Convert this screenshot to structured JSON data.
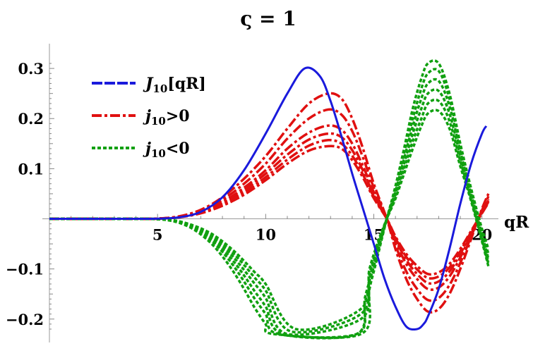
{
  "chart_data": {
    "type": "line",
    "title": "ς = 1",
    "xlabel": "qR",
    "ylabel": "",
    "xlim": [
      0,
      20.5
    ],
    "ylim": [
      -0.22,
      0.31
    ],
    "x_ticks": [
      5,
      10,
      15,
      20
    ],
    "x_tick_labels": [
      "5",
      "10",
      "15",
      "20"
    ],
    "y_ticks": [
      0.3,
      0.2,
      0.1,
      -0.1,
      -0.2
    ],
    "y_tick_labels": [
      "0.3",
      "0.2",
      "0.1",
      "−0.1",
      "−0.2"
    ],
    "legend_position": "top-left",
    "legend": [
      {
        "label_main": "J",
        "label_sub": "10",
        "label_rest": "[qR]",
        "color": "#1a1adc",
        "style": "solid"
      },
      {
        "label_main": "j",
        "label_sub": "10",
        "label_rest": ">0",
        "color": "#e01010",
        "style": "dashdot"
      },
      {
        "label_main": "j",
        "label_sub": "10",
        "label_rest": "<0",
        "color": "#10a010",
        "style": "dotted"
      }
    ],
    "series": [
      {
        "group": "J10",
        "color": "#1a1adc",
        "style": "solid",
        "x": [
          0,
          2,
          4,
          5,
          6,
          7,
          8,
          9,
          10,
          11,
          11.8,
          12.5,
          13,
          13.5,
          14,
          14.5,
          15,
          15.5,
          16,
          16.5,
          17,
          17.3,
          17.5,
          18,
          18.5,
          19,
          19.5,
          20,
          20.2
        ],
        "y": [
          0,
          0,
          0,
          0.0003,
          0.003,
          0.014,
          0.043,
          0.097,
          0.17,
          0.25,
          0.3,
          0.285,
          0.235,
          0.165,
          0.09,
          0.02,
          -0.05,
          -0.12,
          -0.175,
          -0.215,
          -0.22,
          -0.21,
          -0.195,
          -0.14,
          -0.06,
          0.03,
          0.11,
          0.17,
          0.185
        ]
      },
      {
        "group": "j_pos",
        "color": "#e01010",
        "style": "dashdot",
        "x": [
          0,
          4,
          5,
          6,
          7,
          8,
          9,
          10,
          11,
          12,
          12.9,
          13.5,
          14,
          14.5,
          15,
          15.6,
          16,
          16.5,
          17,
          17.5,
          18,
          18.5,
          19,
          19.5,
          20,
          20.3
        ],
        "y": [
          0,
          0,
          0.0006,
          0.005,
          0.018,
          0.043,
          0.08,
          0.125,
          0.18,
          0.23,
          0.25,
          0.24,
          0.2,
          0.14,
          0.07,
          0.0,
          -0.06,
          -0.12,
          -0.16,
          -0.185,
          -0.18,
          -0.15,
          -0.1,
          -0.04,
          0.02,
          0.05
        ]
      },
      {
        "group": "j_pos",
        "color": "#e01010",
        "style": "dashdot",
        "x": [
          0,
          4,
          5,
          6,
          7,
          8,
          9,
          10,
          11,
          12,
          12.9,
          13.5,
          14,
          14.5,
          15,
          15.6,
          16,
          16.5,
          17,
          17.5,
          18,
          18.5,
          19,
          19.5,
          20,
          20.3
        ],
        "y": [
          0,
          0,
          0.0005,
          0.0045,
          0.016,
          0.038,
          0.07,
          0.11,
          0.16,
          0.2,
          0.218,
          0.208,
          0.175,
          0.122,
          0.062,
          0.0,
          -0.052,
          -0.105,
          -0.14,
          -0.162,
          -0.158,
          -0.132,
          -0.088,
          -0.035,
          0.017,
          0.045
        ]
      },
      {
        "group": "j_pos",
        "color": "#e01010",
        "style": "dashdot",
        "x": [
          0,
          4,
          5,
          6,
          7,
          8,
          9,
          10,
          11,
          12,
          12.9,
          13.5,
          14,
          14.5,
          15,
          15.6,
          16,
          16.5,
          17,
          17.5,
          18,
          18.5,
          19,
          19.5,
          20,
          20.3
        ],
        "y": [
          0,
          0,
          0.0005,
          0.004,
          0.014,
          0.033,
          0.062,
          0.097,
          0.14,
          0.172,
          0.186,
          0.178,
          0.15,
          0.105,
          0.053,
          0.0,
          -0.045,
          -0.09,
          -0.12,
          -0.14,
          -0.137,
          -0.115,
          -0.077,
          -0.03,
          0.015,
          0.04
        ]
      },
      {
        "group": "j_pos",
        "color": "#e01010",
        "style": "dashdot",
        "x": [
          0,
          4,
          5,
          6,
          7,
          8,
          9,
          10,
          11,
          12,
          12.9,
          13.5,
          14,
          14.5,
          15,
          15.6,
          16,
          16.5,
          17,
          17.5,
          18,
          18.5,
          19,
          19.5,
          20,
          20.3
        ],
        "y": [
          0,
          0,
          0.0004,
          0.0036,
          0.013,
          0.03,
          0.057,
          0.09,
          0.128,
          0.158,
          0.17,
          0.163,
          0.137,
          0.096,
          0.048,
          0.0,
          -0.041,
          -0.082,
          -0.11,
          -0.128,
          -0.125,
          -0.105,
          -0.07,
          -0.028,
          0.013,
          0.037
        ]
      },
      {
        "group": "j_pos",
        "color": "#e01010",
        "style": "dashdot",
        "x": [
          0,
          4,
          5,
          6,
          7,
          8,
          9,
          10,
          11,
          12,
          12.9,
          13.5,
          14,
          14.5,
          15,
          15.6,
          16,
          16.5,
          17,
          17.5,
          18,
          18.5,
          19,
          19.5,
          20,
          20.3
        ],
        "y": [
          0,
          0,
          0.0004,
          0.0033,
          0.012,
          0.028,
          0.052,
          0.083,
          0.118,
          0.146,
          0.157,
          0.15,
          0.126,
          0.088,
          0.044,
          0.0,
          -0.038,
          -0.076,
          -0.101,
          -0.118,
          -0.115,
          -0.097,
          -0.065,
          -0.026,
          0.012,
          0.034
        ]
      },
      {
        "group": "j_pos",
        "color": "#e01010",
        "style": "dashdot",
        "x": [
          0,
          4,
          5,
          6,
          7,
          8,
          9,
          10,
          11,
          12,
          12.9,
          13.5,
          14,
          14.5,
          15,
          15.6,
          16,
          16.5,
          17,
          17.5,
          18,
          18.5,
          19,
          19.5,
          20,
          20.3
        ],
        "y": [
          0,
          0,
          0.0004,
          0.003,
          0.011,
          0.026,
          0.048,
          0.077,
          0.11,
          0.136,
          0.145,
          0.14,
          0.117,
          0.082,
          0.041,
          0.0,
          -0.035,
          -0.07,
          -0.094,
          -0.11,
          -0.107,
          -0.09,
          -0.06,
          -0.024,
          0.011,
          0.032
        ]
      },
      {
        "group": "j_neg",
        "color": "#10a010",
        "style": "dotted",
        "x": [
          0,
          4,
          5,
          5.5,
          6,
          6.5,
          7,
          7.5,
          8,
          8.5,
          9,
          9.5,
          10,
          10.4,
          14.4,
          14.8,
          15.2,
          15.6,
          16,
          16.4,
          16.8,
          17.2,
          17.5,
          18,
          18.5,
          19,
          19.5,
          20,
          20.3
        ],
        "y": [
          0,
          0,
          -0.0008,
          -0.003,
          -0.008,
          -0.017,
          -0.031,
          -0.05,
          -0.075,
          -0.105,
          -0.14,
          -0.178,
          -0.21,
          -0.23,
          -0.23,
          -0.14,
          -0.065,
          0.0,
          0.065,
          0.14,
          0.22,
          0.28,
          0.31,
          0.31,
          0.25,
          0.15,
          0.06,
          -0.02,
          -0.06
        ]
      },
      {
        "group": "j_neg",
        "color": "#10a010",
        "style": "dotted",
        "x": [
          0,
          4,
          5,
          5.5,
          6,
          6.5,
          7,
          7.5,
          8,
          8.5,
          9,
          9.5,
          10,
          10.6,
          14.2,
          14.6,
          15,
          15.6,
          16,
          16.4,
          16.8,
          17.2,
          17.5,
          18,
          18.5,
          19,
          19.5,
          20,
          20.3
        ],
        "y": [
          0,
          0,
          -0.0007,
          -0.0027,
          -0.007,
          -0.015,
          -0.027,
          -0.044,
          -0.066,
          -0.093,
          -0.125,
          -0.16,
          -0.19,
          -0.23,
          -0.23,
          -0.165,
          -0.105,
          0.0,
          0.06,
          0.13,
          0.2,
          0.26,
          0.29,
          0.295,
          0.24,
          0.145,
          0.055,
          -0.025,
          -0.07
        ]
      },
      {
        "group": "j_neg",
        "color": "#10a010",
        "style": "dotted",
        "x": [
          0,
          4,
          5,
          5.5,
          6,
          6.5,
          7,
          7.5,
          8,
          8.5,
          9,
          9.5,
          10,
          10.8,
          14.2,
          14.6,
          15,
          15.6,
          16,
          16.4,
          16.8,
          17.2,
          17.5,
          18,
          18.5,
          19,
          19.5,
          20,
          20.3
        ],
        "y": [
          0,
          0,
          -0.0006,
          -0.0024,
          -0.0065,
          -0.014,
          -0.025,
          -0.04,
          -0.06,
          -0.084,
          -0.113,
          -0.145,
          -0.175,
          -0.23,
          -0.23,
          -0.155,
          -0.095,
          0.0,
          0.055,
          0.12,
          0.185,
          0.24,
          0.27,
          0.275,
          0.225,
          0.135,
          0.05,
          -0.03,
          -0.08
        ]
      },
      {
        "group": "j_neg",
        "color": "#10a010",
        "style": "dotted",
        "x": [
          0,
          4,
          5,
          5.5,
          6,
          6.5,
          7,
          7.5,
          8,
          8.5,
          9,
          9.5,
          10,
          11,
          14.4,
          14.8,
          15.2,
          15.6,
          16,
          16.4,
          16.8,
          17.2,
          17.5,
          18,
          18.5,
          19,
          19.5,
          20,
          20.3
        ],
        "y": [
          0,
          0,
          -0.0005,
          -0.0022,
          -0.006,
          -0.013,
          -0.023,
          -0.036,
          -0.054,
          -0.076,
          -0.102,
          -0.13,
          -0.158,
          -0.23,
          -0.2,
          -0.12,
          -0.055,
          0.0,
          0.05,
          0.11,
          0.17,
          0.22,
          0.25,
          0.255,
          0.21,
          0.125,
          0.045,
          -0.035,
          -0.085
        ]
      },
      {
        "group": "j_neg",
        "color": "#10a010",
        "style": "dotted",
        "x": [
          0,
          4,
          5,
          5.5,
          6,
          6.5,
          7,
          7.5,
          8,
          8.5,
          9,
          9.5,
          10,
          11.2,
          14.4,
          14.8,
          15.2,
          15.6,
          16,
          16.4,
          16.8,
          17.2,
          17.5,
          18,
          18.5,
          19,
          19.5,
          20,
          20.3
        ],
        "y": [
          0,
          0,
          -0.0005,
          -0.002,
          -0.0055,
          -0.012,
          -0.021,
          -0.033,
          -0.049,
          -0.069,
          -0.092,
          -0.118,
          -0.143,
          -0.225,
          -0.19,
          -0.11,
          -0.05,
          0.0,
          0.045,
          0.1,
          0.155,
          0.2,
          0.23,
          0.235,
          0.195,
          0.115,
          0.04,
          -0.04,
          -0.09
        ]
      },
      {
        "group": "j_neg",
        "color": "#10a010",
        "style": "dotted",
        "x": [
          0,
          4,
          5,
          5.5,
          6,
          6.5,
          7,
          7.5,
          8,
          8.5,
          9,
          9.5,
          10,
          11.4,
          14.4,
          14.8,
          15.2,
          15.6,
          16,
          16.4,
          16.8,
          17.2,
          17.5,
          18,
          18.5,
          19,
          19.5,
          20,
          20.3
        ],
        "y": [
          0,
          0,
          -0.0004,
          -0.0018,
          -0.005,
          -0.011,
          -0.019,
          -0.03,
          -0.045,
          -0.063,
          -0.084,
          -0.107,
          -0.13,
          -0.22,
          -0.18,
          -0.1,
          -0.045,
          0.0,
          0.04,
          0.09,
          0.14,
          0.185,
          0.21,
          0.215,
          0.18,
          0.105,
          0.035,
          -0.045,
          -0.095
        ]
      }
    ]
  }
}
